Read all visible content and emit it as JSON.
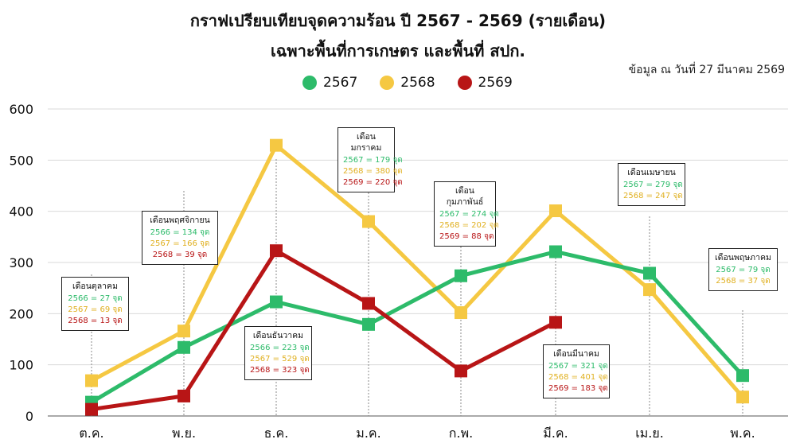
{
  "title": "กราฟเปรียบเทียบจุดความร้อน ปี 2567 - 2569 (รายเดือน)",
  "subtitle": "เฉพาะพื้นที่การเกษตร และพื้นที่ สปก.",
  "data_note": "ข้อมูล ณ วันที่ 27 มีนาคม 2569",
  "colors": {
    "s2567": "#2dbb6a",
    "s2568": "#f5c842",
    "s2569": "#b81516"
  },
  "chart_data": {
    "type": "line",
    "categories": [
      "ต.ค.",
      "พ.ย.",
      "ธ.ค.",
      "ม.ค.",
      "ก.พ.",
      "มี.ค.",
      "เม.ย.",
      "พ.ค."
    ],
    "ylim": [
      0,
      600
    ],
    "yticks": [
      0,
      100,
      200,
      300,
      400,
      500,
      600
    ],
    "grid": true,
    "legend_position": "top-center",
    "series": [
      {
        "name": "2567",
        "color": "#2dbb6a",
        "values": [
          27,
          134,
          223,
          179,
          274,
          321,
          279,
          79
        ]
      },
      {
        "name": "2568",
        "color": "#f5c842",
        "values": [
          69,
          166,
          529,
          380,
          202,
          401,
          247,
          37
        ]
      },
      {
        "name": "2569",
        "color": "#b81516",
        "values": [
          13,
          39,
          323,
          220,
          88,
          183,
          null,
          null
        ]
      }
    ]
  },
  "annotations": [
    {
      "month_index": 0,
      "heading": "เดือนตุลาคม",
      "lines": [
        {
          "text": "2566 = 27 จุด",
          "color": "#2dbb6a"
        },
        {
          "text": "2567 = 69 จุด",
          "color": "#e0b020"
        },
        {
          "text": "2568 = 13 จุด",
          "color": "#b81516"
        }
      ]
    },
    {
      "month_index": 1,
      "heading": "เดือนพฤศจิกายน",
      "lines": [
        {
          "text": "2566 = 134 จุด",
          "color": "#2dbb6a"
        },
        {
          "text": "2567 = 166 จุด",
          "color": "#e0b020"
        },
        {
          "text": "2568 = 39 จุด",
          "color": "#b81516"
        }
      ]
    },
    {
      "month_index": 2,
      "heading": "เดือนธันวาคม",
      "lines": [
        {
          "text": "2566 = 223 จุด",
          "color": "#2dbb6a"
        },
        {
          "text": "2567 = 529 จุด",
          "color": "#e0b020"
        },
        {
          "text": "2568 = 323 จุด",
          "color": "#b81516"
        }
      ]
    },
    {
      "month_index": 3,
      "heading": "เดือนมกราคม",
      "lines": [
        {
          "text": "2567 = 179 จุด",
          "color": "#2dbb6a"
        },
        {
          "text": "2568 = 380 จุด",
          "color": "#e0b020"
        },
        {
          "text": "2569 = 220 จุด",
          "color": "#b81516"
        }
      ]
    },
    {
      "month_index": 4,
      "heading": "เดือนกุมภาพันธ์",
      "lines": [
        {
          "text": "2567 = 274 จุด",
          "color": "#2dbb6a"
        },
        {
          "text": "2568 = 202 จุด",
          "color": "#e0b020"
        },
        {
          "text": "2569 = 88 จุด",
          "color": "#b81516"
        }
      ]
    },
    {
      "month_index": 5,
      "heading": "เดือนมีนาคม",
      "lines": [
        {
          "text": "2567 = 321 จุด",
          "color": "#2dbb6a"
        },
        {
          "text": "2568 = 401 จุด",
          "color": "#e0b020"
        },
        {
          "text": "2569 = 183 จุด",
          "color": "#b81516"
        }
      ]
    },
    {
      "month_index": 6,
      "heading": "เดือนเมษายน",
      "lines": [
        {
          "text": "2567 = 279 จุด",
          "color": "#2dbb6a"
        },
        {
          "text": "2568 = 247 จุด",
          "color": "#e0b020"
        }
      ]
    },
    {
      "month_index": 7,
      "heading": "เดือนพฤษภาคม",
      "lines": [
        {
          "text": "2567 = 79 จุด",
          "color": "#2dbb6a"
        },
        {
          "text": "2568 = 37 จุด",
          "color": "#e0b020"
        }
      ]
    }
  ]
}
